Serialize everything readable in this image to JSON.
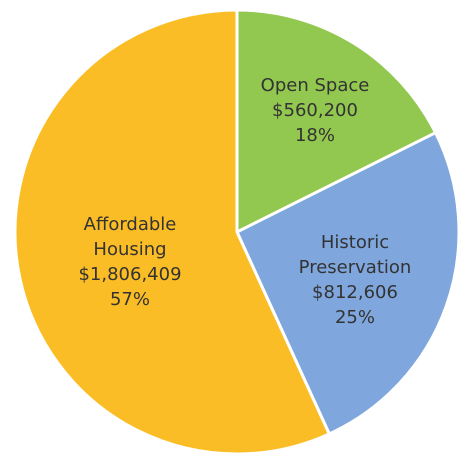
{
  "chart_data": {
    "type": "pie",
    "categories": [
      "Open Space",
      "Historic Preservation",
      "Affordable Housing"
    ],
    "values": [
      560200,
      812606,
      1806409
    ],
    "value_labels": [
      "$560,200",
      "$812,606",
      "$1,806,409"
    ],
    "shares": [
      18,
      25,
      57
    ],
    "share_labels": [
      "18%",
      "25%",
      "57%"
    ],
    "colors": [
      "#92c84f",
      "#7fa7de",
      "#fbbd25"
    ]
  }
}
